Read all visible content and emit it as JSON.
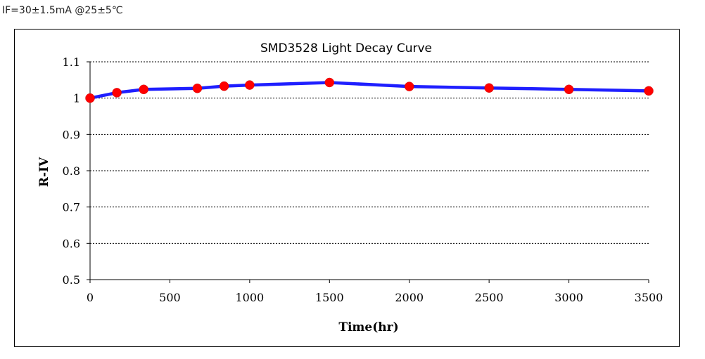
{
  "condition_text": "IF=30±1.5mA @25±5℃",
  "chart_data": {
    "type": "line",
    "title": "SMD3528 Light Decay Curve",
    "xlabel": "Time(hr)",
    "ylabel": "R-IV",
    "xlim": [
      0,
      3500
    ],
    "ylim": [
      0.5,
      1.1
    ],
    "xticks": [
      0,
      500,
      1000,
      1500,
      2000,
      2500,
      3000,
      3500
    ],
    "xtick_labels": [
      "0",
      "500",
      "1000",
      "1500",
      "2000",
      "2500",
      "3000",
      "3500"
    ],
    "yticks": [
      0.5,
      0.6,
      0.7,
      0.8,
      0.9,
      1.0,
      1.1
    ],
    "ytick_labels": [
      "0.5",
      "0.6",
      "0.7",
      "0.8",
      "0.9",
      "1",
      "1.1"
    ],
    "grid": "horizontal dashed",
    "series": [
      {
        "line_color": "#1f1fff",
        "marker_color": "#ff0000",
        "x": [
          0,
          168,
          336,
          672,
          840,
          1000,
          1500,
          2000,
          2500,
          3000,
          3500
        ],
        "y": [
          1.0,
          1.015,
          1.024,
          1.027,
          1.033,
          1.036,
          1.043,
          1.032,
          1.028,
          1.024,
          1.02
        ]
      }
    ]
  }
}
